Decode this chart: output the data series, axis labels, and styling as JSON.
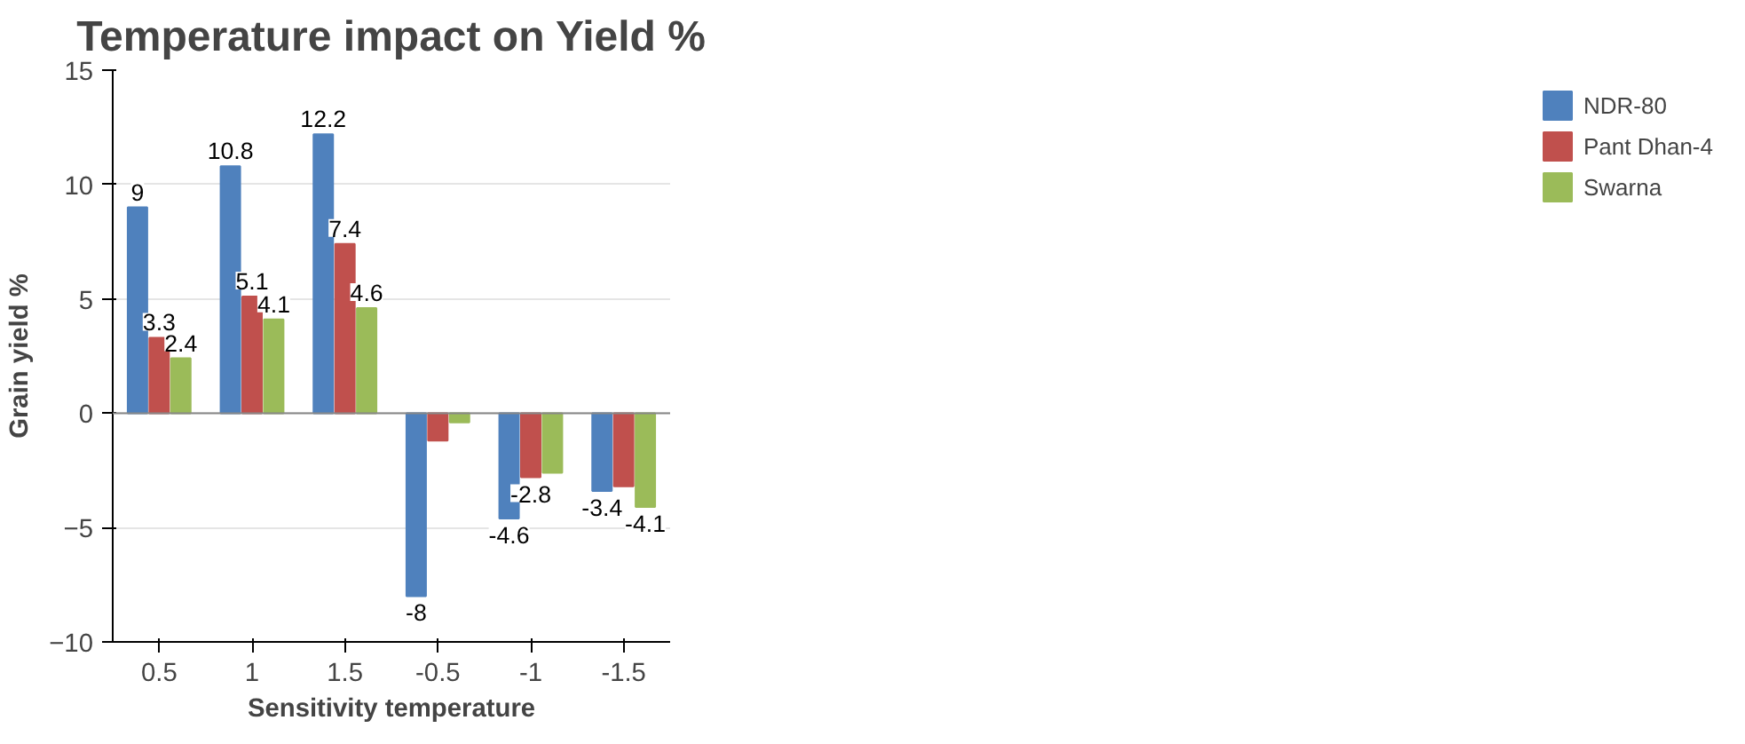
{
  "chart_data": {
    "type": "bar",
    "title": "Temperature impact on Yield %",
    "xlabel": "Sensitivity temperature",
    "ylabel": "Grain yield %",
    "categories": [
      "0.5",
      "1",
      "1.5",
      "-0.5",
      "-1",
      "-1.5"
    ],
    "series": [
      {
        "name": "NDR-80",
        "color": "#4f81bd",
        "values": [
          9,
          10.8,
          12.2,
          -8,
          -4.6,
          -3.4
        ],
        "value_labels": [
          "9",
          "10.8",
          "12.2",
          "-8",
          "-4.6",
          "-3.4"
        ]
      },
      {
        "name": "Pant Dhan-4",
        "color": "#c0504d",
        "values": [
          3.3,
          5.1,
          7.4,
          -1.2,
          -2.8,
          -3.2
        ],
        "value_labels": [
          "3.3",
          "5.1",
          "7.4",
          null,
          "-2.8",
          null
        ]
      },
      {
        "name": "Swarna",
        "color": "#9bbb59",
        "values": [
          2.4,
          4.1,
          4.6,
          -0.4,
          -2.6,
          -4.1
        ],
        "value_labels": [
          "2.4",
          "4.1",
          "4.6",
          null,
          null,
          "-4.1"
        ]
      }
    ],
    "ylim": [
      -10,
      15
    ],
    "yticks": [
      -10,
      -5,
      0,
      5,
      10,
      15
    ],
    "grid": "y",
    "legend": "right"
  }
}
